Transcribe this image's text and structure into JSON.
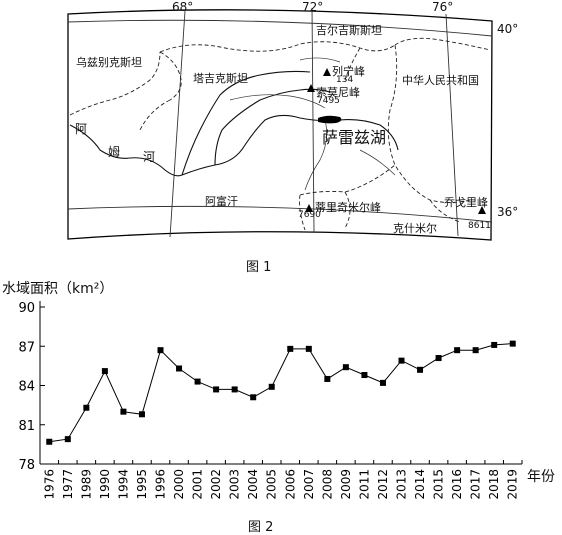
{
  "figure1": {
    "caption": "图 1",
    "longitudes": [
      "68°",
      "72°",
      "76°"
    ],
    "latitudes": [
      "40°",
      "36°"
    ],
    "labels": {
      "kyrgyzstan": "吉尔吉斯斯坦",
      "uzbekistan": "乌兹别克斯坦",
      "tajikistan": "塔吉克斯坦",
      "china": "中华人民共和国",
      "afghanistan": "阿富汗",
      "kashmir": "克什米尔",
      "lake": "萨雷兹湖",
      "river_1": "阿",
      "river_2": "姆",
      "river_3": "河"
    },
    "peaks": [
      {
        "name": "列宁峰",
        "height": "134"
      },
      {
        "name": "索莫尼峰",
        "height": "7495"
      },
      {
        "name": "蒂里奇米尔峰",
        "height": "7690"
      },
      {
        "name": "乔戈里峰",
        "height": "8611"
      }
    ]
  },
  "figure2": {
    "caption": "图 2",
    "ylabel": "水域面积（km²）",
    "xlabel": "年份"
  },
  "chart_data": {
    "type": "line",
    "title": "",
    "ylabel": "水域面积（km²）",
    "xlabel": "年份",
    "ylim": [
      78,
      90
    ],
    "yticks": [
      78,
      81,
      84,
      87,
      90
    ],
    "categories": [
      "1976",
      "1977",
      "1989",
      "1990",
      "1994",
      "1995",
      "1996",
      "2000",
      "2001",
      "2002",
      "2003",
      "2004",
      "2005",
      "2006",
      "2007",
      "2008",
      "2009",
      "2011",
      "2012",
      "2013",
      "2014",
      "2015",
      "2016",
      "2017",
      "2018",
      "2019"
    ],
    "values": [
      79.7,
      79.9,
      82.3,
      85.1,
      82.0,
      81.8,
      86.7,
      85.3,
      84.3,
      83.7,
      83.7,
      83.1,
      83.9,
      86.8,
      86.8,
      84.5,
      85.4,
      84.8,
      84.2,
      85.9,
      85.2,
      86.1,
      86.7,
      86.7,
      87.1,
      87.2
    ]
  }
}
